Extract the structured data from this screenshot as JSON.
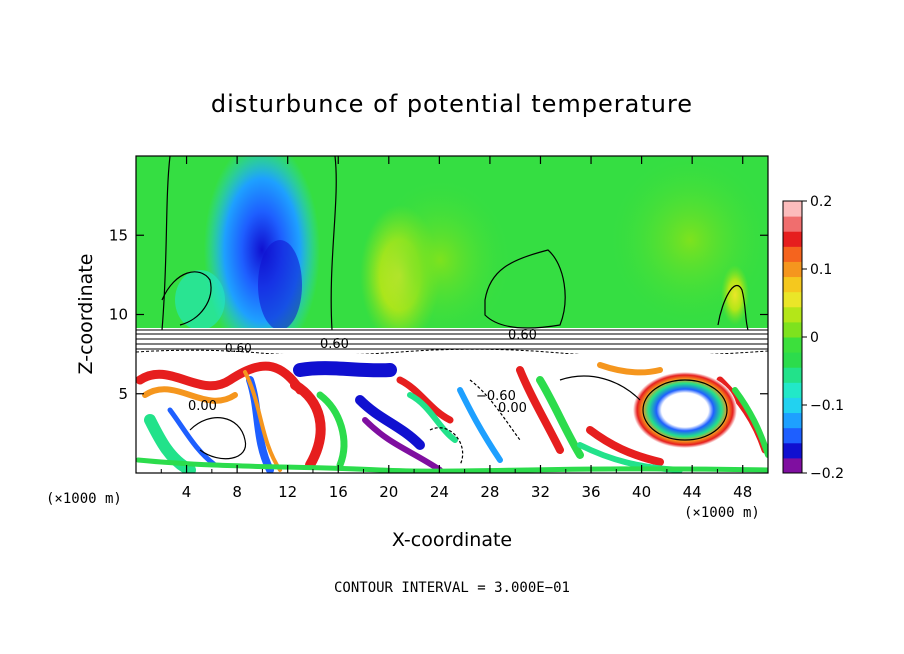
{
  "chart_data": {
    "type": "heatmap",
    "title": "disturbunce of potential temperature",
    "xlabel": "X-coordinate",
    "ylabel": "Z-coordinate",
    "x_unit_label": "(×1000 m)",
    "z_unit_label": "(×1000 m)",
    "xlim": [
      0,
      50
    ],
    "ylim": [
      0,
      20
    ],
    "x_ticks": [
      4,
      8,
      12,
      16,
      20,
      24,
      28,
      32,
      36,
      40,
      44,
      48
    ],
    "y_ticks": [
      5,
      10,
      15
    ],
    "grid": false,
    "colorbar": {
      "range": [
        -0.2,
        0.2
      ],
      "ticks": [
        {
          "value": 0.2,
          "label": "0.2"
        },
        {
          "value": 0.1,
          "label": "0.1"
        },
        {
          "value": 0.0,
          "label": "0"
        },
        {
          "value": -0.1,
          "label": "−0.1"
        },
        {
          "value": -0.2,
          "label": "−0.2"
        }
      ],
      "colors": [
        "#7f0fa0",
        "#1010d0",
        "#1e5fff",
        "#1ea0ff",
        "#22d2f0",
        "#22e8c8",
        "#22e28a",
        "#2cdc4c",
        "#3ce03c",
        "#7ee21e",
        "#b4e618",
        "#eae628",
        "#f5c81e",
        "#f5961e",
        "#f5641e",
        "#e61e1e",
        "#f06e6e",
        "#fcbcbc"
      ]
    },
    "contour_labels": [
      "0.60",
      "0.60",
      "0.00",
      "−0.60",
      "0.00",
      "0.60"
    ],
    "contour_interval": "CONTOUR INTERVAL = 3.000E−01"
  }
}
